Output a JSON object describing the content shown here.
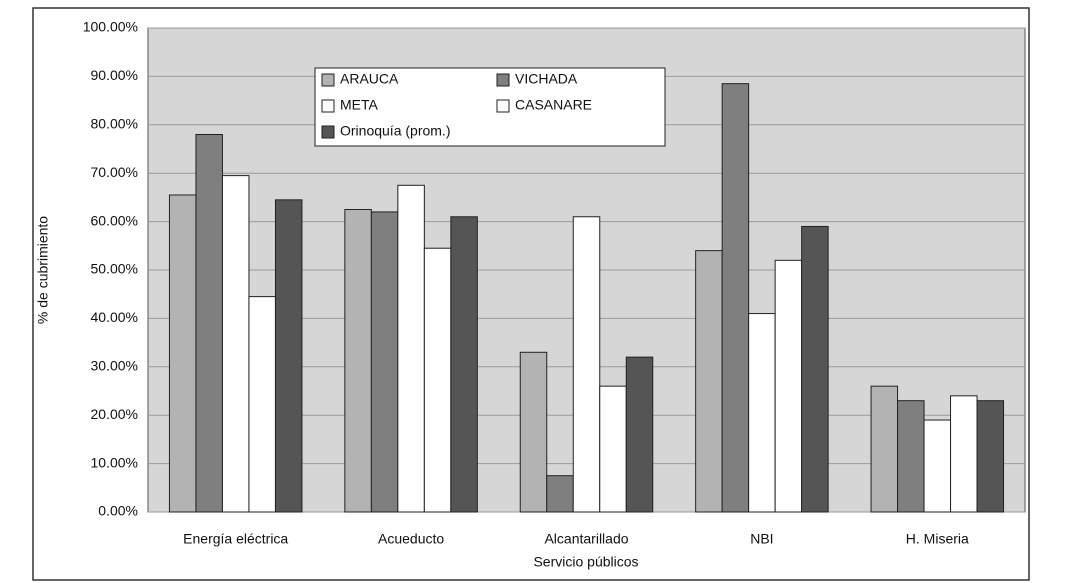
{
  "chart_data": {
    "type": "bar",
    "categories": [
      "Energía eléctrica",
      "Acueducto",
      "Alcantarillado",
      "NBI",
      "H. Miseria"
    ],
    "series": [
      {
        "name": "ARAUCA",
        "color": "#b3b3b3",
        "values": [
          65.5,
          62.5,
          33,
          54,
          26
        ]
      },
      {
        "name": "VICHADA",
        "color": "#7f7f7f",
        "values": [
          78,
          62,
          7.5,
          88.5,
          23
        ]
      },
      {
        "name": "META",
        "color": "#ffffff",
        "values": [
          69.5,
          67.5,
          61,
          41,
          19
        ]
      },
      {
        "name": "CASANARE",
        "color": "#ffffff",
        "values": [
          44.5,
          54.5,
          26,
          52,
          24
        ]
      },
      {
        "name": "Orinoquía (prom.)",
        "color": "#555555",
        "values": [
          64.5,
          61,
          32,
          59,
          23
        ]
      }
    ],
    "xlabel": "Servicio públicos",
    "ylabel": "% de cubrimiento",
    "ylim": [
      0,
      100
    ],
    "yticks": [
      {
        "value": 0,
        "label": "0.00%"
      },
      {
        "value": 10,
        "label": "10.00%"
      },
      {
        "value": 20,
        "label": "20.00%"
      },
      {
        "value": 30,
        "label": "30.00%"
      },
      {
        "value": 40,
        "label": "40.00%"
      },
      {
        "value": 50,
        "label": "50.00%"
      },
      {
        "value": 60,
        "label": "60.00%"
      },
      {
        "value": 70,
        "label": "70.00%"
      },
      {
        "value": 80,
        "label": "80.00%"
      },
      {
        "value": 90,
        "label": "90.00%"
      },
      {
        "value": 100,
        "label": "100.00%"
      }
    ],
    "grid": true,
    "legend": "top-left"
  }
}
